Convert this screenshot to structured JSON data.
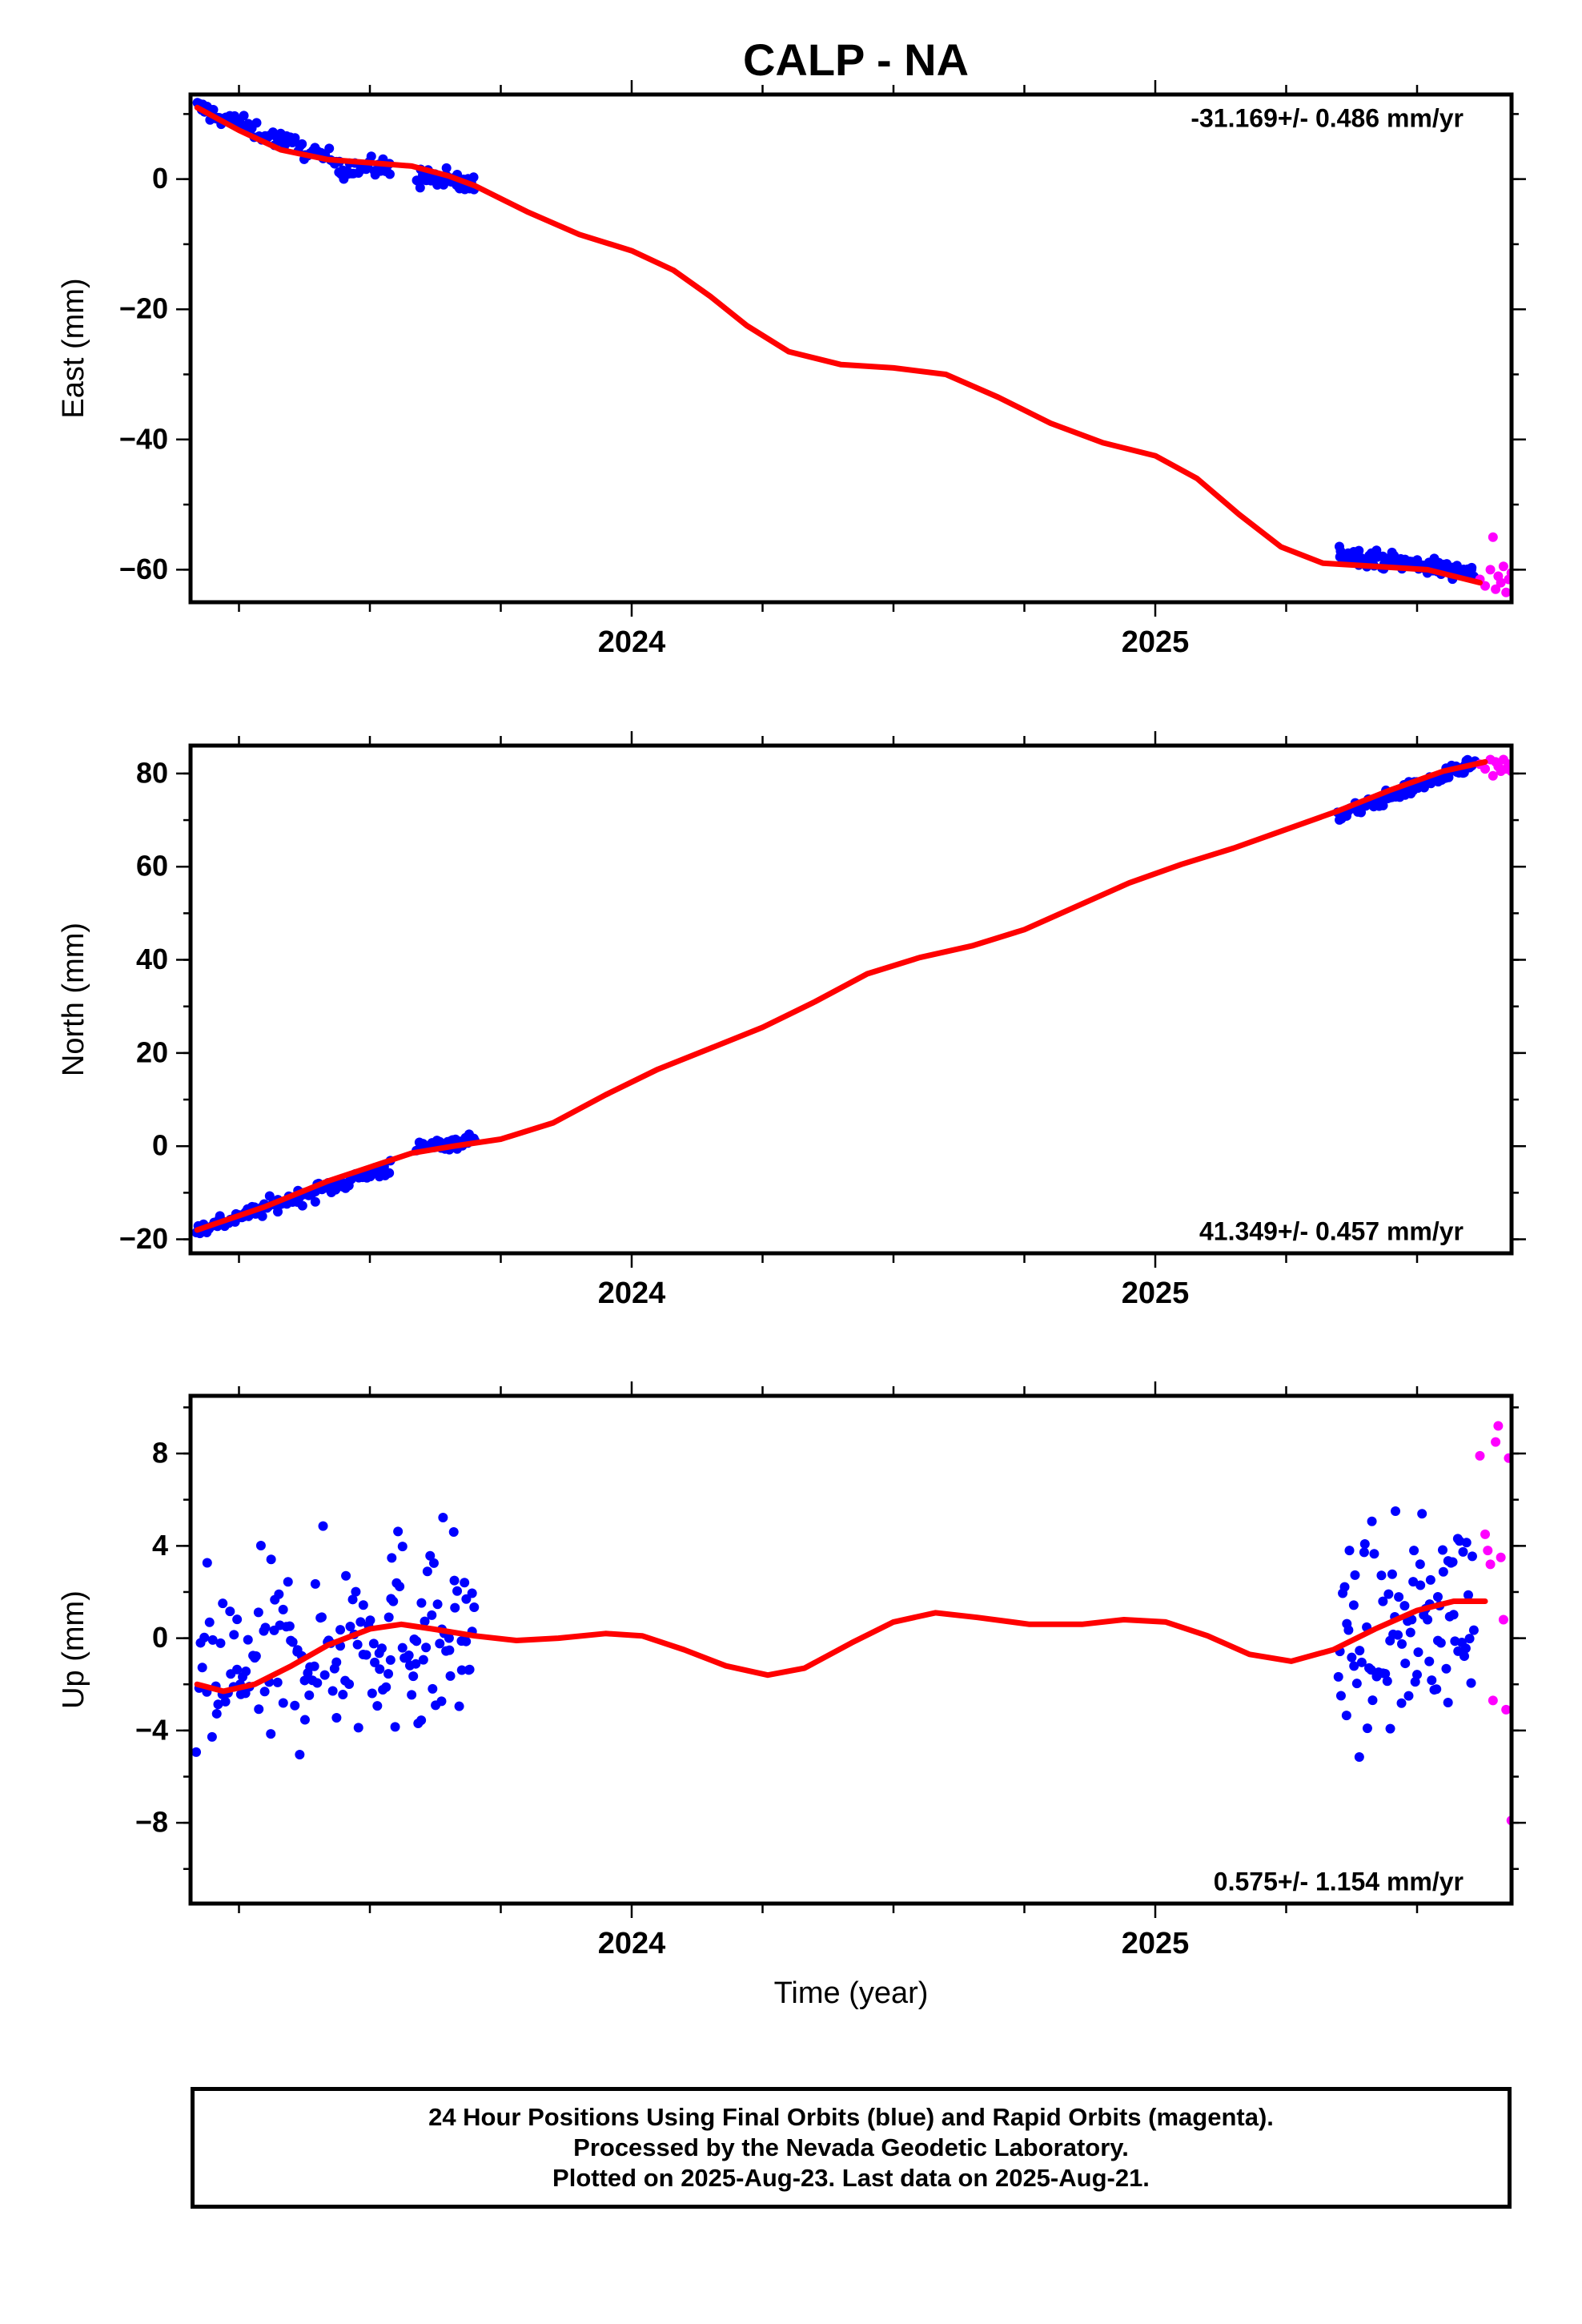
{
  "title": "CALP - NA",
  "colors": {
    "final": "#0000ff",
    "rapid": "#ff00ff",
    "trend": "#ff0000"
  },
  "chart_data": [
    {
      "type": "scatter",
      "panel": "east",
      "ylabel": "East (mm)",
      "xlabel": "",
      "rate": "-31.169+/- 0.486 mm/yr",
      "xlim": [
        2023.12,
        2025.65
      ],
      "ylim": [
        -65,
        13
      ],
      "yticks": [
        0,
        -20,
        -40,
        -60
      ],
      "xticks": [
        "2024",
        "2025"
      ],
      "trend": [
        [
          2023.17,
          11
        ],
        [
          2023.25,
          7.5
        ],
        [
          2023.33,
          4.5
        ],
        [
          2023.42,
          3
        ],
        [
          2023.5,
          2.5
        ],
        [
          2023.58,
          2
        ],
        [
          2023.65,
          0.5
        ],
        [
          2023.7,
          -1
        ],
        [
          2023.8,
          -5
        ],
        [
          2023.9,
          -8.5
        ],
        [
          2024.0,
          -11
        ],
        [
          2024.08,
          -14
        ],
        [
          2024.15,
          -18
        ],
        [
          2024.22,
          -22.5
        ],
        [
          2024.3,
          -26.5
        ],
        [
          2024.4,
          -28.5
        ],
        [
          2024.5,
          -29
        ],
        [
          2024.6,
          -30
        ],
        [
          2024.7,
          -33.5
        ],
        [
          2024.8,
          -37.5
        ],
        [
          2024.9,
          -40.5
        ],
        [
          2025.0,
          -42.5
        ],
        [
          2025.08,
          -46
        ],
        [
          2025.16,
          -51.5
        ],
        [
          2025.24,
          -56.5
        ],
        [
          2025.32,
          -59
        ],
        [
          2025.42,
          -59.5
        ],
        [
          2025.52,
          -60
        ],
        [
          2025.62,
          -62
        ]
      ],
      "final": [
        {
          "x_range": [
            2023.17,
            2023.44
          ],
          "y_start": 11,
          "y_end": 2.5,
          "n": 70,
          "noise": 1.0
        },
        {
          "x_range": [
            2023.44,
            2023.54
          ],
          "y_start": 2.0,
          "y_end": 1.5,
          "n": 28,
          "noise": 1.2
        },
        {
          "x_range": [
            2023.59,
            2023.7
          ],
          "y_start": 0.5,
          "y_end": -1.0,
          "n": 40,
          "noise": 1.2
        },
        {
          "x_range": [
            2025.35,
            2025.61
          ],
          "y_start": -57.5,
          "y_end": -60.5,
          "n": 110,
          "noise": 0.9
        }
      ],
      "rapid": [
        [
          2025.62,
          -61.5
        ],
        [
          2025.63,
          -62.5
        ],
        [
          2025.64,
          -60
        ],
        [
          2025.645,
          -55
        ],
        [
          2025.65,
          -63
        ],
        [
          2025.655,
          -61
        ],
        [
          2025.66,
          -62
        ],
        [
          2025.665,
          -59.5
        ],
        [
          2025.67,
          -63.5
        ],
        [
          2025.675,
          -61.5
        ],
        [
          2025.68,
          -60.5
        ],
        [
          2025.685,
          -62
        ]
      ]
    },
    {
      "type": "scatter",
      "panel": "north",
      "ylabel": "North (mm)",
      "xlabel": "",
      "rate": "41.349+/- 0.457 mm/yr",
      "xlim": [
        2023.12,
        2025.65
      ],
      "ylim": [
        -23,
        86
      ],
      "yticks": [
        80,
        60,
        40,
        20,
        0,
        -20
      ],
      "xticks": [
        "2024",
        "2025"
      ],
      "trend": [
        [
          2023.17,
          -18
        ],
        [
          2023.3,
          -13
        ],
        [
          2023.42,
          -7.5
        ],
        [
          2023.5,
          -4.5
        ],
        [
          2023.58,
          -1.5
        ],
        [
          2023.66,
          0
        ],
        [
          2023.75,
          1.5
        ],
        [
          2023.85,
          5
        ],
        [
          2023.95,
          11
        ],
        [
          2024.05,
          16.5
        ],
        [
          2024.15,
          21
        ],
        [
          2024.25,
          25.5
        ],
        [
          2024.35,
          31
        ],
        [
          2024.45,
          37
        ],
        [
          2024.55,
          40.5
        ],
        [
          2024.65,
          43
        ],
        [
          2024.75,
          46.5
        ],
        [
          2024.85,
          51.5
        ],
        [
          2024.95,
          56.5
        ],
        [
          2025.05,
          60.5
        ],
        [
          2025.15,
          64
        ],
        [
          2025.25,
          68
        ],
        [
          2025.35,
          72
        ],
        [
          2025.45,
          76.5
        ],
        [
          2025.55,
          80.5
        ],
        [
          2025.63,
          82.5
        ]
      ],
      "final": [
        {
          "x_range": [
            2023.17,
            2023.54
          ],
          "y_start": -18,
          "y_end": -4.5,
          "n": 110,
          "noise": 1.2
        },
        {
          "x_range": [
            2023.59,
            2023.7
          ],
          "y_start": -0.5,
          "y_end": 1.5,
          "n": 40,
          "noise": 1.0
        },
        {
          "x_range": [
            2025.35,
            2025.61
          ],
          "y_start": 71,
          "y_end": 82,
          "n": 110,
          "noise": 1.0
        }
      ],
      "rapid": [
        [
          2025.62,
          82
        ],
        [
          2025.63,
          81
        ],
        [
          2025.64,
          83
        ],
        [
          2025.645,
          79.5
        ],
        [
          2025.65,
          82.5
        ],
        [
          2025.655,
          81.5
        ],
        [
          2025.66,
          80.5
        ],
        [
          2025.665,
          83
        ],
        [
          2025.67,
          81
        ],
        [
          2025.675,
          82
        ],
        [
          2025.68,
          80.5
        ],
        [
          2025.685,
          81.5
        ]
      ]
    },
    {
      "type": "scatter",
      "panel": "up",
      "ylabel": "Up (mm)",
      "xlabel": "Time (year)",
      "rate": "0.575+/- 1.154 mm/yr",
      "xlim": [
        2023.12,
        2025.65
      ],
      "ylim": [
        -11.5,
        10.5
      ],
      "yticks": [
        8,
        4,
        0,
        -4,
        -8
      ],
      "xticks": [
        "2024",
        "2025"
      ],
      "trend": [
        [
          2023.17,
          -2
        ],
        [
          2023.22,
          -2.3
        ],
        [
          2023.28,
          -2
        ],
        [
          2023.35,
          -1.2
        ],
        [
          2023.42,
          -0.3
        ],
        [
          2023.5,
          0.4
        ],
        [
          2023.56,
          0.6
        ],
        [
          2023.62,
          0.4
        ],
        [
          2023.7,
          0.1
        ],
        [
          2023.78,
          -0.1
        ],
        [
          2023.86,
          0
        ],
        [
          2023.95,
          0.2
        ],
        [
          2024.02,
          0.1
        ],
        [
          2024.1,
          -0.5
        ],
        [
          2024.18,
          -1.2
        ],
        [
          2024.26,
          -1.6
        ],
        [
          2024.33,
          -1.3
        ],
        [
          2024.42,
          -0.2
        ],
        [
          2024.5,
          0.7
        ],
        [
          2024.58,
          1.1
        ],
        [
          2024.66,
          0.9
        ],
        [
          2024.76,
          0.6
        ],
        [
          2024.86,
          0.6
        ],
        [
          2024.94,
          0.8
        ],
        [
          2025.02,
          0.7
        ],
        [
          2025.1,
          0.1
        ],
        [
          2025.18,
          -0.7
        ],
        [
          2025.26,
          -1
        ],
        [
          2025.34,
          -0.5
        ],
        [
          2025.42,
          0.4
        ],
        [
          2025.5,
          1.2
        ],
        [
          2025.57,
          1.6
        ],
        [
          2025.63,
          1.6
        ]
      ],
      "final": [
        {
          "x_range": [
            2023.17,
            2023.54
          ],
          "y_start": -2,
          "y_end": 0.5,
          "n": 110,
          "noise": 3.0
        },
        {
          "x_range": [
            2023.54,
            2023.7
          ],
          "y_start": 0.3,
          "y_end": 0.3,
          "n": 55,
          "noise": 3.2
        },
        {
          "x_range": [
            2025.35,
            2025.61
          ],
          "y_start": -0.6,
          "y_end": 1.6,
          "n": 95,
          "noise": 3.0
        }
      ],
      "rapid": [
        [
          2025.62,
          7.9
        ],
        [
          2025.63,
          4.5
        ],
        [
          2025.635,
          3.8
        ],
        [
          2025.64,
          3.2
        ],
        [
          2025.645,
          -2.7
        ],
        [
          2025.65,
          8.5
        ],
        [
          2025.655,
          9.2
        ],
        [
          2025.66,
          3.5
        ],
        [
          2025.665,
          0.8
        ],
        [
          2025.67,
          -3.1
        ],
        [
          2025.675,
          7.8
        ],
        [
          2025.68,
          -7.9
        ],
        [
          2025.685,
          -8.0
        ]
      ]
    }
  ],
  "footer": {
    "line1": "24 Hour Positions Using Final Orbits (blue) and Rapid Orbits (magenta).",
    "line2": "Processed by the Nevada Geodetic Laboratory.",
    "line3": "Plotted on 2025-Aug-23. Last data on 2025-Aug-21."
  }
}
